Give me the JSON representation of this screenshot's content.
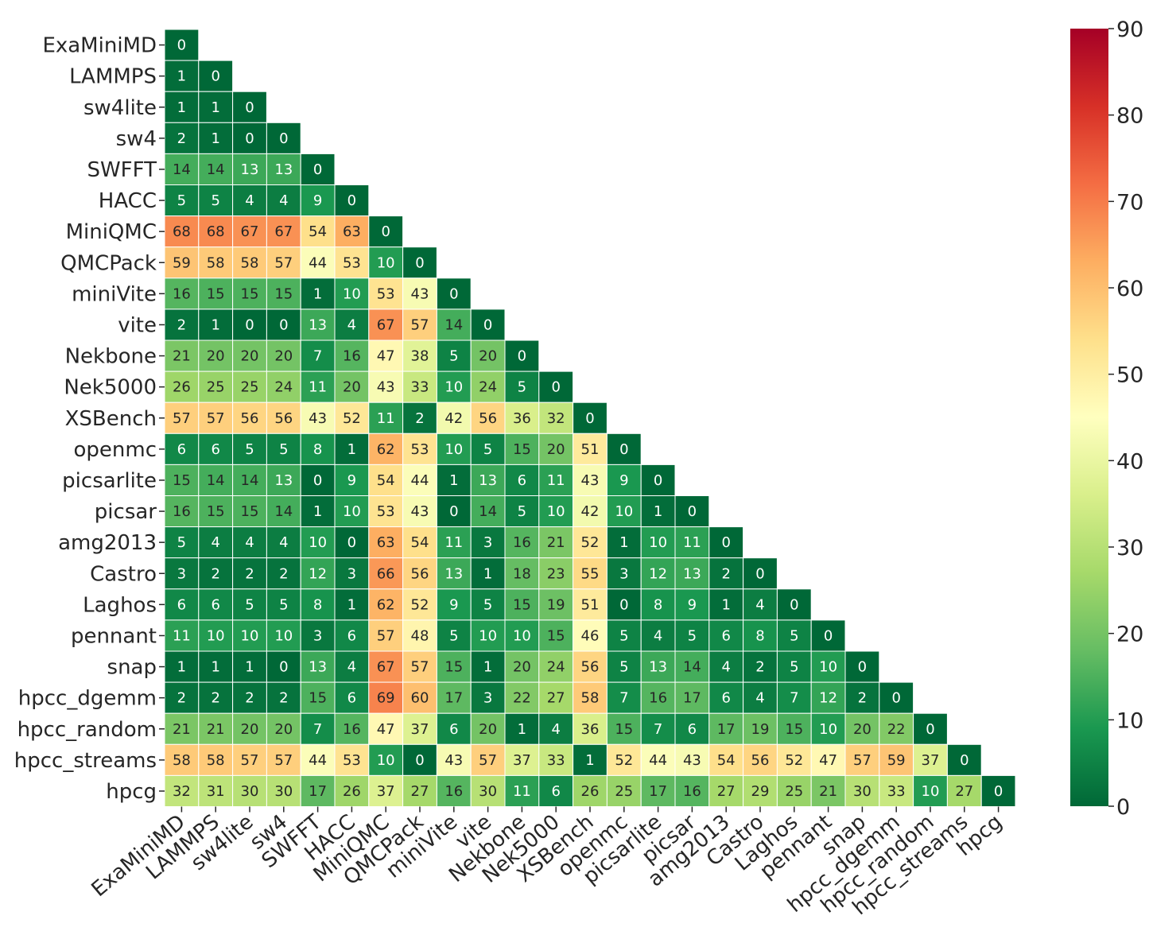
{
  "chart_data": {
    "type": "heatmap",
    "title": "",
    "xlabel": "",
    "ylabel": "",
    "layout": "lower-triangle",
    "labels": [
      "ExaMiniMD",
      "LAMMPS",
      "sw4lite",
      "sw4",
      "SWFFT",
      "HACC",
      "MiniQMC",
      "QMCPack",
      "miniVite",
      "vite",
      "Nekbone",
      "Nek5000",
      "XSBench",
      "openmc",
      "picsarlite",
      "picsar",
      "amg2013",
      "Castro",
      "Laghos",
      "pennant",
      "snap",
      "hpcc_dgemm",
      "hpcc_random",
      "hpcc_streams",
      "hpcg"
    ],
    "values": [
      [
        0
      ],
      [
        1,
        0
      ],
      [
        1,
        1,
        0
      ],
      [
        2,
        1,
        0,
        0
      ],
      [
        14,
        14,
        13,
        13,
        0
      ],
      [
        5,
        5,
        4,
        4,
        9,
        0
      ],
      [
        68,
        68,
        67,
        67,
        54,
        63,
        0
      ],
      [
        59,
        58,
        58,
        57,
        44,
        53,
        10,
        0
      ],
      [
        16,
        15,
        15,
        15,
        1,
        10,
        53,
        43,
        0
      ],
      [
        2,
        1,
        0,
        0,
        13,
        4,
        67,
        57,
        14,
        0
      ],
      [
        21,
        20,
        20,
        20,
        7,
        16,
        47,
        38,
        5,
        20,
        0
      ],
      [
        26,
        25,
        25,
        24,
        11,
        20,
        43,
        33,
        10,
        24,
        5,
        0
      ],
      [
        57,
        57,
        56,
        56,
        43,
        52,
        11,
        2,
        42,
        56,
        36,
        32,
        0
      ],
      [
        6,
        6,
        5,
        5,
        8,
        1,
        62,
        53,
        10,
        5,
        15,
        20,
        51,
        0
      ],
      [
        15,
        14,
        14,
        13,
        0,
        9,
        54,
        44,
        1,
        13,
        6,
        11,
        43,
        9,
        0
      ],
      [
        16,
        15,
        15,
        14,
        1,
        10,
        53,
        43,
        0,
        14,
        5,
        10,
        42,
        10,
        1,
        0
      ],
      [
        5,
        4,
        4,
        4,
        10,
        0,
        63,
        54,
        11,
        3,
        16,
        21,
        52,
        1,
        10,
        11,
        0
      ],
      [
        3,
        2,
        2,
        2,
        12,
        3,
        66,
        56,
        13,
        1,
        18,
        23,
        55,
        3,
        12,
        13,
        2,
        0
      ],
      [
        6,
        6,
        5,
        5,
        8,
        1,
        62,
        52,
        9,
        5,
        15,
        19,
        51,
        0,
        8,
        9,
        1,
        4,
        0
      ],
      [
        11,
        10,
        10,
        10,
        3,
        6,
        57,
        48,
        5,
        10,
        10,
        15,
        46,
        5,
        4,
        5,
        6,
        8,
        5,
        0
      ],
      [
        1,
        1,
        1,
        0,
        13,
        4,
        67,
        57,
        15,
        1,
        20,
        24,
        56,
        5,
        13,
        14,
        4,
        2,
        5,
        10,
        0
      ],
      [
        2,
        2,
        2,
        2,
        15,
        6,
        69,
        60,
        17,
        3,
        22,
        27,
        58,
        7,
        16,
        17,
        6,
        4,
        7,
        12,
        2,
        0
      ],
      [
        21,
        21,
        20,
        20,
        7,
        16,
        47,
        37,
        6,
        20,
        1,
        4,
        36,
        15,
        7,
        6,
        17,
        19,
        15,
        10,
        20,
        22,
        0
      ],
      [
        58,
        58,
        57,
        57,
        44,
        53,
        10,
        0,
        43,
        57,
        37,
        33,
        1,
        52,
        44,
        43,
        54,
        56,
        52,
        47,
        57,
        59,
        37,
        0
      ],
      [
        32,
        31,
        30,
        30,
        17,
        26,
        37,
        27,
        16,
        30,
        11,
        6,
        26,
        25,
        17,
        16,
        27,
        29,
        25,
        21,
        30,
        33,
        10,
        27,
        0
      ]
    ],
    "colorbar": {
      "range": [
        0,
        90
      ],
      "ticks": [
        "0",
        "10",
        "20",
        "30",
        "40",
        "50",
        "60",
        "70",
        "80",
        "90"
      ],
      "colormap": "RdYlGn_r",
      "colors": [
        "#006837",
        "#1a9850",
        "#66bd63",
        "#a6d96a",
        "#d9ef8b",
        "#ffffbf",
        "#fee08b",
        "#fdae61",
        "#f46d43",
        "#d73027",
        "#a50026"
      ]
    }
  }
}
